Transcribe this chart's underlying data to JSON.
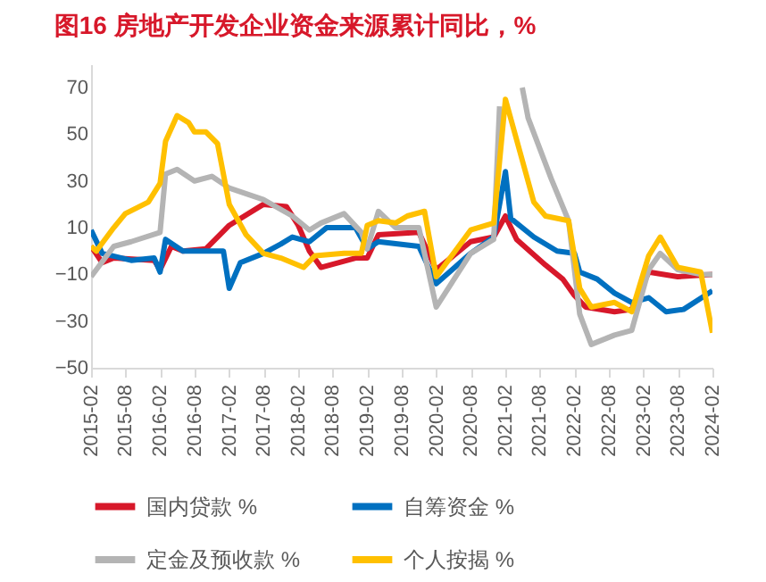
{
  "chart_data": {
    "type": "line",
    "title": "图16  房地产开发企业资金来源累计同比，%",
    "legend": "bottom",
    "ylim": [
      -50,
      80
    ],
    "yticks": [
      -50,
      -30,
      -10,
      10,
      30,
      50,
      70
    ],
    "xlim": [
      "2015-02",
      "2024-02"
    ],
    "xticks": [
      "2015-02",
      "2015-08",
      "2016-02",
      "2016-08",
      "2017-02",
      "2017-08",
      "2018-02",
      "2018-08",
      "2019-02",
      "2019-08",
      "2020-02",
      "2020-08",
      "2021-02",
      "2021-08",
      "2022-02",
      "2022-08",
      "2023-02",
      "2023-08",
      "2024-02"
    ],
    "series": [
      {
        "name": "国内贷款 %",
        "color": "#d7182a",
        "x": [
          "2015-02",
          "2015-04",
          "2015-06",
          "2016-01",
          "2016-02",
          "2016-04",
          "2016-06",
          "2016-10",
          "2017-02",
          "2017-08",
          "2017-12",
          "2018-02",
          "2018-04",
          "2018-06",
          "2018-12",
          "2019-02",
          "2019-04",
          "2019-11",
          "2020-02",
          "2020-08",
          "2020-12",
          "2021-02",
          "2021-04",
          "2021-09",
          "2021-12",
          "2022-02",
          "2022-04",
          "2022-09",
          "2022-12",
          "2023-03",
          "2023-08",
          "2024-02"
        ],
        "values": [
          2,
          -5,
          -3,
          -4,
          -8,
          2,
          0,
          1,
          11,
          20,
          19,
          11,
          0,
          -7,
          -3,
          -3,
          7,
          8,
          -8,
          4,
          6,
          15,
          5,
          -6,
          -12,
          -19,
          -24,
          -26,
          -25,
          -9,
          -11,
          -10
        ]
      },
      {
        "name": "自筹资金 %",
        "color": "#0070c0",
        "x": [
          "2015-02",
          "2015-04",
          "2015-09",
          "2016-01",
          "2016-02",
          "2016-03",
          "2016-06",
          "2017-01",
          "2017-02",
          "2017-04",
          "2017-08",
          "2017-11",
          "2018-01",
          "2018-04",
          "2018-07",
          "2018-12",
          "2019-02",
          "2019-04",
          "2019-11",
          "2020-02",
          "2020-08",
          "2020-12",
          "2021-02",
          "2021-03",
          "2021-07",
          "2021-11",
          "2022-02",
          "2022-03",
          "2022-06",
          "2022-09",
          "2022-12",
          "2023-03",
          "2023-06",
          "2023-09",
          "2024-02"
        ],
        "values": [
          9,
          -1,
          -4,
          -3,
          -9,
          5,
          0,
          0,
          -16,
          -5,
          -1,
          3,
          6,
          4,
          10,
          10,
          1,
          4,
          2,
          -14,
          -1,
          6,
          34,
          14,
          6,
          0,
          -1,
          -9,
          -12,
          -18,
          -22,
          -20,
          -26,
          -25,
          -17
        ]
      },
      {
        "name": "定金及预收款 %",
        "color": "#b4b4b4",
        "x": [
          "2015-02",
          "2015-06",
          "2015-09",
          "2016-02",
          "2016-03",
          "2016-05",
          "2016-08",
          "2016-11",
          "2017-02",
          "2017-08",
          "2018-01",
          "2018-04",
          "2018-06",
          "2018-10",
          "2019-01",
          "2019-02",
          "2019-04",
          "2019-07",
          "2019-11",
          "2020-02",
          "2020-08",
          "2020-12",
          "2021-01",
          "2021-02",
          "2021-04",
          "2021-05",
          "2021-06",
          "2021-10",
          "2022-01",
          "2022-03",
          "2022-05",
          "2022-09",
          "2022-12",
          "2023-03",
          "2023-05",
          "2023-08",
          "2023-12",
          "2024-02"
        ],
        "values": [
          -11,
          2,
          4,
          8,
          33,
          35,
          30,
          32,
          27,
          22,
          15,
          9,
          12,
          16,
          8,
          1,
          17,
          10,
          10,
          -24,
          -1,
          5,
          62,
          null,
          null,
          70,
          57,
          31,
          13,
          -27,
          -40,
          -36,
          -34,
          -8,
          -1,
          -8,
          -10,
          -10
        ]
      },
      {
        "name": "个人按揭 %",
        "color": "#ffc000",
        "x": [
          "2015-02",
          "2015-03",
          "2015-06",
          "2015-08",
          "2015-12",
          "2016-02",
          "2016-03",
          "2016-05",
          "2016-07",
          "2016-08",
          "2016-10",
          "2016-12",
          "2017-02",
          "2017-05",
          "2017-08",
          "2017-11",
          "2018-03",
          "2018-05",
          "2018-10",
          "2019-01",
          "2019-02",
          "2019-04",
          "2019-07",
          "2019-09",
          "2019-12",
          "2020-02",
          "2020-08",
          "2020-12",
          "2021-02",
          "2021-07",
          "2021-09",
          "2022-01",
          "2022-03",
          "2022-05",
          "2022-09",
          "2022-12",
          "2023-03",
          "2023-05",
          "2023-08",
          "2023-12",
          "2024-02"
        ],
        "values": [
          2,
          0,
          10,
          16,
          21,
          29,
          47,
          58,
          55,
          51,
          51,
          46,
          20,
          7,
          -1,
          -3,
          -7,
          -2,
          -1,
          -1,
          11,
          13,
          12,
          15,
          17,
          -11,
          9,
          12,
          65,
          21,
          15,
          13,
          -16,
          -24,
          -22,
          -26,
          -2,
          6,
          -7,
          -9,
          -35
        ]
      }
    ]
  }
}
